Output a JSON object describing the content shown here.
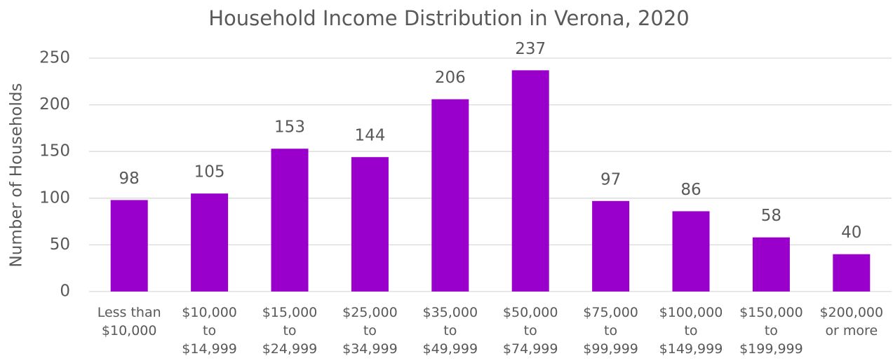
{
  "chart_data": {
    "type": "bar",
    "title": "Household Income Distribution in Verona, 2020",
    "y_label": "Number of Households",
    "categories": [
      "Less than $10,000",
      "$10,000 to $14,999",
      "$15,000 to $24,999",
      "$25,000 to $34,999",
      "$35,000 to $49,999",
      "$50,000 to $74,999",
      "$75,000 to $99,999",
      "$100,000 to $149,999",
      "$150,000 to $199,999",
      "$200,000 or more"
    ],
    "values": [
      98,
      105,
      153,
      144,
      206,
      237,
      97,
      86,
      58,
      40
    ],
    "color": "#9900cc",
    "ylim": [
      0,
      250
    ],
    "yticks": [
      0,
      50,
      100,
      150,
      200,
      250
    ],
    "grid": true
  }
}
